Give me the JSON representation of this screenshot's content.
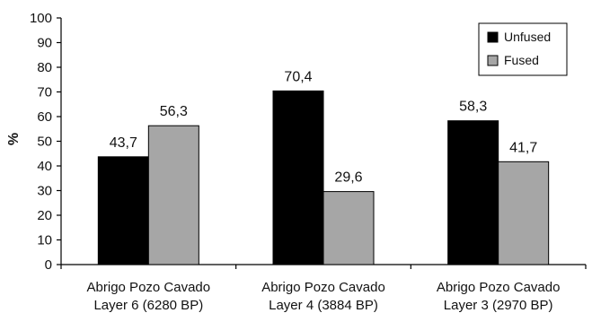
{
  "chart_data": {
    "type": "bar",
    "categories": [
      [
        "Abrigo Pozo Cavado",
        "Layer 6  (6280 BP)"
      ],
      [
        "Abrigo Pozo Cavado",
        "Layer 4  (3884 BP)"
      ],
      [
        "Abrigo Pozo Cavado",
        "Layer 3  (2970 BP)"
      ]
    ],
    "series": [
      {
        "name": "Unfused",
        "color": "#000000",
        "values": [
          43.7,
          70.4,
          58.3
        ],
        "labels": [
          "43,7",
          "70,4",
          "58,3"
        ]
      },
      {
        "name": "Fused",
        "color": "#a6a6a6",
        "values": [
          56.3,
          29.6,
          41.7
        ],
        "labels": [
          "56,3",
          "29,6",
          "41,7"
        ]
      }
    ],
    "title": "",
    "xlabel": "",
    "ylabel": "%",
    "ylim": [
      0,
      100
    ],
    "yticks": [
      0,
      10,
      20,
      30,
      40,
      50,
      60,
      70,
      80,
      90,
      100
    ],
    "grid": false,
    "legend_position": "top-right"
  }
}
